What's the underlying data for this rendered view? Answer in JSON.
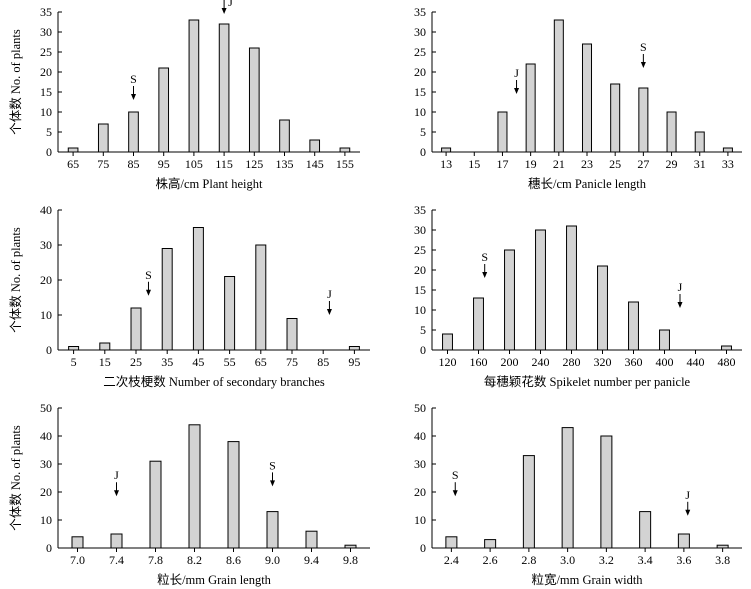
{
  "chart_data": [
    {
      "type": "bar",
      "id": "plant-height",
      "title": "",
      "xlabel": "株高/cm  Plant height",
      "ylabel": "个体数 No. of plants",
      "categories": [
        "65",
        "75",
        "85",
        "95",
        "105",
        "115",
        "125",
        "135",
        "145",
        "155"
      ],
      "values": [
        1,
        7,
        10,
        21,
        33,
        32,
        26,
        8,
        3,
        1
      ],
      "ylim": [
        0,
        35
      ],
      "yticks": [
        0,
        5,
        10,
        15,
        20,
        25,
        30,
        35
      ],
      "x_domain": [
        60,
        160
      ],
      "markers": [
        {
          "label": "S",
          "x": 85,
          "y": 13,
          "label_side": "top"
        },
        {
          "label": "J",
          "x": 115,
          "y": 34.5,
          "label_side": "right"
        }
      ]
    },
    {
      "type": "bar",
      "id": "panicle-length",
      "title": "",
      "xlabel": "穗长/cm  Panicle length",
      "ylabel": "",
      "categories": [
        "13",
        "15",
        "17",
        "19",
        "21",
        "23",
        "25",
        "27",
        "29",
        "31",
        "33"
      ],
      "values": [
        1,
        0,
        10,
        22,
        33,
        27,
        17,
        16,
        10,
        5,
        1
      ],
      "ylim": [
        0,
        35
      ],
      "yticks": [
        0,
        5,
        10,
        15,
        20,
        25,
        30,
        35
      ],
      "x_domain": [
        12,
        34
      ],
      "markers": [
        {
          "label": "J",
          "x": 18,
          "y": 14.5,
          "label_side": "top"
        },
        {
          "label": "S",
          "x": 27,
          "y": 21,
          "label_side": "top"
        }
      ]
    },
    {
      "type": "bar",
      "id": "secondary-branches",
      "title": "",
      "xlabel": "二次枝梗数 Number of secondary branches",
      "ylabel": "个体数 No. of plants",
      "categories": [
        "5",
        "15",
        "25",
        "35",
        "45",
        "55",
        "65",
        "75",
        "85",
        "95"
      ],
      "values": [
        1,
        2,
        12,
        29,
        35,
        21,
        30,
        9,
        0,
        1
      ],
      "ylim": [
        0,
        40
      ],
      "yticks": [
        0,
        10,
        20,
        30,
        40
      ],
      "x_domain": [
        0,
        100
      ],
      "markers": [
        {
          "label": "S",
          "x": 29,
          "y": 15.5,
          "label_side": "top"
        },
        {
          "label": "J",
          "x": 87,
          "y": 10,
          "label_side": "top"
        }
      ]
    },
    {
      "type": "bar",
      "id": "spikelet-number",
      "title": "",
      "xlabel": "每穗颖花数 Spikelet number per panicle",
      "ylabel": "",
      "categories": [
        "120",
        "160",
        "200",
        "240",
        "280",
        "320",
        "360",
        "400",
        "440",
        "480"
      ],
      "values": [
        4,
        13,
        25,
        30,
        31,
        21,
        12,
        5,
        0,
        1
      ],
      "ylim": [
        0,
        35
      ],
      "yticks": [
        0,
        5,
        10,
        15,
        20,
        25,
        30,
        35
      ],
      "x_domain": [
        100,
        500
      ],
      "markers": [
        {
          "label": "S",
          "x": 168,
          "y": 18,
          "label_side": "top"
        },
        {
          "label": "J",
          "x": 420,
          "y": 10.5,
          "label_side": "top"
        }
      ]
    },
    {
      "type": "bar",
      "id": "grain-length",
      "title": "",
      "xlabel": "粒长/mm  Grain length",
      "ylabel": "个体数 No. of plants",
      "categories": [
        "7.0",
        "7.4",
        "7.8",
        "8.2",
        "8.6",
        "9.0",
        "9.4",
        "9.8"
      ],
      "values": [
        4,
        5,
        31,
        44,
        38,
        13,
        6,
        1
      ],
      "ylim": [
        0,
        50
      ],
      "yticks": [
        0,
        10,
        20,
        30,
        40,
        50
      ],
      "x_domain": [
        6.8,
        10.0
      ],
      "markers": [
        {
          "label": "J",
          "x": 7.4,
          "y": 18.5,
          "label_side": "top"
        },
        {
          "label": "S",
          "x": 9.0,
          "y": 22,
          "label_side": "top"
        }
      ]
    },
    {
      "type": "bar",
      "id": "grain-width",
      "title": "",
      "xlabel": "粒宽/mm  Grain width",
      "ylabel": "",
      "categories": [
        "2.4",
        "2.6",
        "2.8",
        "3.0",
        "3.2",
        "3.4",
        "3.6",
        "3.8"
      ],
      "values": [
        4,
        3,
        33,
        43,
        40,
        13,
        5,
        1
      ],
      "ylim": [
        0,
        50
      ],
      "yticks": [
        0,
        10,
        20,
        30,
        40,
        50
      ],
      "x_domain": [
        2.3,
        3.9
      ],
      "markers": [
        {
          "label": "S",
          "x": 2.42,
          "y": 18.5,
          "label_side": "top"
        },
        {
          "label": "J",
          "x": 3.62,
          "y": 11.5,
          "label_side": "top"
        }
      ]
    }
  ]
}
